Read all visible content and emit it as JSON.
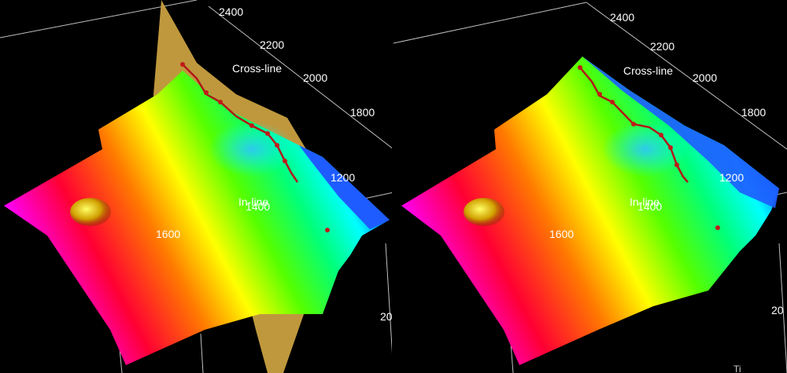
{
  "left_view": {
    "crossline_axis_title": "Cross-line",
    "crossline_ticks": [
      "2400",
      "2200",
      "2000",
      "1800"
    ],
    "inline_axis_title": "In-line",
    "inline_ticks": [
      "1200",
      "1400",
      "1600"
    ],
    "vertical_axis_partial_tick": "20"
  },
  "right_view": {
    "crossline_axis_title": "Cross-line",
    "crossline_ticks": [
      "2400",
      "2200",
      "2000",
      "1800"
    ],
    "inline_axis_title": "In-line",
    "inline_ticks": [
      "1200",
      "1400",
      "1600"
    ],
    "vertical_axis_partial_tick": "20",
    "corner_partial_label": "Ti"
  },
  "colors": {
    "surface_gradient": [
      "#ff00ff",
      "#ff0033",
      "#ff7a00",
      "#ffff00",
      "#55ff00",
      "#00ff7a",
      "#00ffff",
      "#0044ff"
    ],
    "fault_plane": "#c9a040",
    "fault_sticks": "#b01818",
    "box_lines": "#bfbfbf"
  }
}
